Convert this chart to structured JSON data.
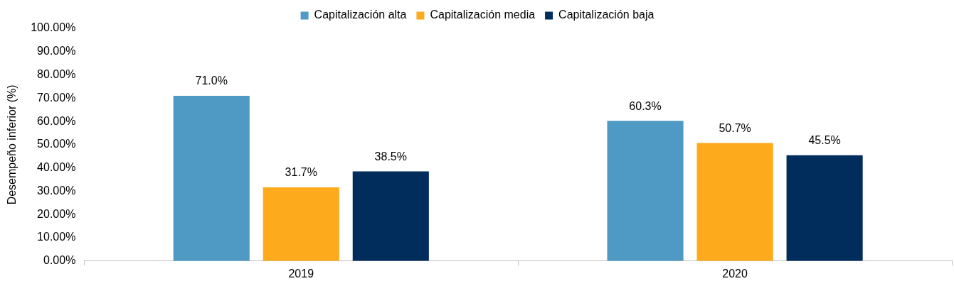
{
  "chart_data": {
    "type": "bar",
    "ylabel": "Desempeño inferior (%)",
    "categories": [
      "2019",
      "2020"
    ],
    "series": [
      {
        "name": "Capitalización alta",
        "color": "#4f9ac4",
        "values": [
          71.0,
          60.3
        ],
        "value_labels": [
          "71.0%",
          "60.3%"
        ]
      },
      {
        "name": "Capitalización media",
        "color": "#fdaa1c",
        "values": [
          31.7,
          50.7
        ],
        "value_labels": [
          "31.7%",
          "50.7%"
        ]
      },
      {
        "name": "Capitalización baja",
        "color": "#002d5c",
        "values": [
          38.5,
          45.5
        ],
        "value_labels": [
          "38.5%",
          "45.5%"
        ]
      }
    ],
    "ylim": [
      0,
      100
    ],
    "yticks": [
      {
        "value": 0,
        "label": "0.00%"
      },
      {
        "value": 10,
        "label": "10.00%"
      },
      {
        "value": 20,
        "label": "20.00%"
      },
      {
        "value": 30,
        "label": "30.00%"
      },
      {
        "value": 40,
        "label": "40.00%"
      },
      {
        "value": 50,
        "label": "50.00%"
      },
      {
        "value": 60,
        "label": "60.00%"
      },
      {
        "value": 70,
        "label": "70.00%"
      },
      {
        "value": 80,
        "label": "80.00%"
      },
      {
        "value": 90,
        "label": "90.00%"
      },
      {
        "value": 100,
        "label": "100.00%"
      }
    ],
    "grid": false,
    "legend": "top"
  }
}
